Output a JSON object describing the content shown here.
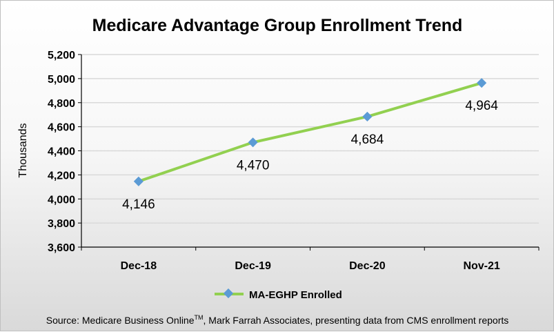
{
  "chart_data": {
    "type": "line",
    "title": "Medicare Advantage Group Enrollment Trend",
    "xlabel": "",
    "ylabel": "Thousands",
    "categories": [
      "Dec-18",
      "Dec-19",
      "Dec-20",
      "Nov-21"
    ],
    "series": [
      {
        "name": "MA-EGHP Enrolled",
        "values": [
          4146,
          4470,
          4684,
          4964
        ],
        "data_labels": [
          "4,146",
          "4,470",
          "4,684",
          "4,964"
        ],
        "color": "#92d050",
        "marker_color": "#5b9bd5"
      }
    ],
    "ylim": [
      3600,
      5200
    ],
    "yticks": [
      3600,
      3800,
      4000,
      4200,
      4400,
      4600,
      4800,
      5000,
      5200
    ],
    "ytick_labels": [
      "3,600",
      "3,800",
      "4,000",
      "4,200",
      "4,400",
      "4,600",
      "4,800",
      "5,000",
      "5,200"
    ],
    "grid": true,
    "legend_position": "bottom"
  },
  "source_prefix": "Source: Medicare Business Online",
  "source_tm": "TM",
  "source_suffix": ", Mark Farrah Associates, presenting data from CMS enrollment reports"
}
